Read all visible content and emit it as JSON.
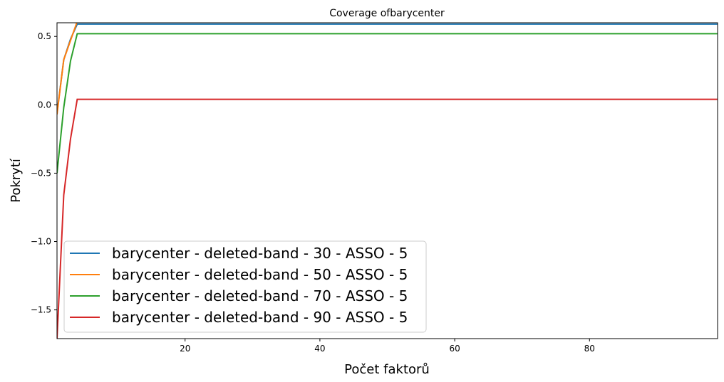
{
  "chart_data": {
    "type": "line",
    "title": "Coverage ofbarycenter",
    "xlabel": "Počet faktorů",
    "ylabel": "Pokrytí",
    "xlim": [
      1,
      99
    ],
    "ylim": [
      -1.71,
      0.6
    ],
    "xticks": [
      20,
      40,
      60,
      80
    ],
    "yticks": [
      0.5,
      0.0,
      -0.5,
      -1.0,
      -1.5
    ],
    "ytick_labels": [
      "0.5",
      "0.0",
      "−0.5",
      "−1.0",
      "−1.5"
    ],
    "grid": false,
    "legend_position": "lower-left",
    "series": [
      {
        "name": "barycenter - deleted-band - 30 - ASSO - 5",
        "color": "#1f77b4",
        "points": [
          [
            1,
            -0.06
          ],
          [
            2,
            0.33
          ],
          [
            3,
            0.48
          ],
          [
            4,
            0.59
          ],
          [
            99,
            0.59
          ]
        ]
      },
      {
        "name": "barycenter - deleted-band - 50 - ASSO - 5",
        "color": "#ff7f0e",
        "points": [
          [
            1,
            -0.07
          ],
          [
            2,
            0.33
          ],
          [
            3,
            0.47
          ],
          [
            4,
            0.61
          ],
          [
            99,
            0.61
          ]
        ]
      },
      {
        "name": "barycenter - deleted-band - 70 - ASSO - 5",
        "color": "#2ca02c",
        "points": [
          [
            1,
            -0.5
          ],
          [
            2,
            -0.02
          ],
          [
            3,
            0.32
          ],
          [
            4,
            0.52
          ],
          [
            99,
            0.52
          ]
        ]
      },
      {
        "name": "barycenter - deleted-band - 90 - ASSO - 5",
        "color": "#d62728",
        "points": [
          [
            1,
            -1.71
          ],
          [
            2,
            -0.66
          ],
          [
            3,
            -0.25
          ],
          [
            4,
            0.04
          ],
          [
            99,
            0.04
          ]
        ]
      }
    ]
  }
}
